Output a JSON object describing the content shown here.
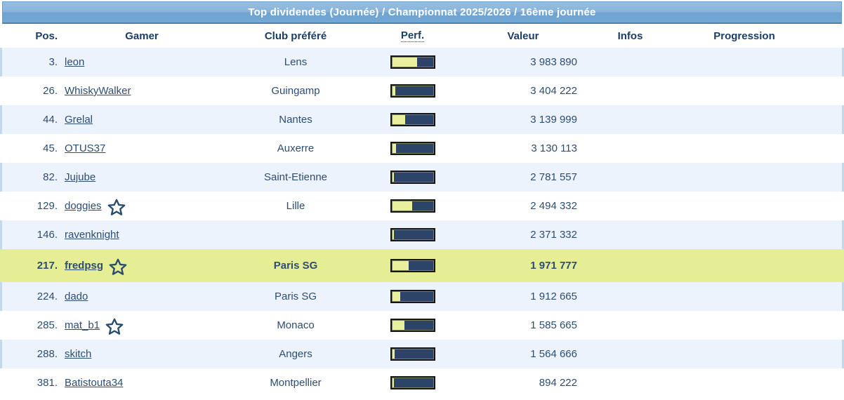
{
  "header": {
    "title": "Top dividendes (Journée) / Championnat 2025/2026 / 16ème journée"
  },
  "table": {
    "columns": {
      "pos": "Pos.",
      "gamer": "Gamer",
      "club": "Club préféré",
      "perf": "Perf.",
      "valeur": "Valeur",
      "infos": "Infos",
      "progression": "Progression"
    },
    "rows": [
      {
        "pos": "3.",
        "gamer": "leon",
        "star": false,
        "club": "Lens",
        "perf_pct": 62,
        "valeur": "3 983 890",
        "highlight": false
      },
      {
        "pos": "26.",
        "gamer": "WhiskyWalker",
        "star": false,
        "club": "Guingamp",
        "perf_pct": 7,
        "valeur": "3 404 222",
        "highlight": false
      },
      {
        "pos": "44.",
        "gamer": "Grelal",
        "star": false,
        "club": "Nantes",
        "perf_pct": 32,
        "valeur": "3 139 999",
        "highlight": false
      },
      {
        "pos": "45.",
        "gamer": "OTUS37",
        "star": false,
        "club": "Auxerre",
        "perf_pct": 9,
        "valeur": "3 130 113",
        "highlight": false
      },
      {
        "pos": "82.",
        "gamer": "Jujube",
        "star": false,
        "club": "Saint-Etienne",
        "perf_pct": 5,
        "valeur": "2 781 557",
        "highlight": false
      },
      {
        "pos": "129.",
        "gamer": "doggies",
        "star": true,
        "club": "Lille",
        "perf_pct": 49,
        "valeur": "2 494 332",
        "highlight": false
      },
      {
        "pos": "146.",
        "gamer": "ravenknight",
        "star": false,
        "club": "",
        "perf_pct": 5,
        "valeur": "2 371 332",
        "highlight": false
      },
      {
        "pos": "217.",
        "gamer": "fredpsg",
        "star": true,
        "club": "Paris SG",
        "perf_pct": 41,
        "valeur": "1 971 777",
        "highlight": true
      },
      {
        "pos": "224.",
        "gamer": "dado",
        "star": false,
        "club": "Paris SG",
        "perf_pct": 20,
        "valeur": "1 912 665",
        "highlight": false
      },
      {
        "pos": "285.",
        "gamer": "mat_b1",
        "star": true,
        "club": "Monaco",
        "perf_pct": 30,
        "valeur": "1 585 665",
        "highlight": false
      },
      {
        "pos": "288.",
        "gamer": "skitch",
        "star": false,
        "club": "Angers",
        "perf_pct": 6,
        "valeur": "1 564 666",
        "highlight": false
      },
      {
        "pos": "381.",
        "gamer": "Batistouta34",
        "star": false,
        "club": "Montpellier",
        "perf_pct": 5,
        "valeur": "894 222",
        "highlight": false
      }
    ]
  },
  "icons": {
    "favorite_star": "star-outline"
  },
  "colors": {
    "title_gradient_top": "#97bedf",
    "title_gradient_bottom": "#74a8d5",
    "title_border_bottom": "#4d80af",
    "header_text": "#1d3e63",
    "row_text": "#2d4d71",
    "row_shaded_bg": "#edf3fc",
    "row_shaded_edge": "#c3d9e9",
    "highlight_row_bg": "#e5ee94",
    "bar_bg": "#2b4468",
    "bar_fill": "#e8f09d",
    "bar_border": "#161616"
  }
}
